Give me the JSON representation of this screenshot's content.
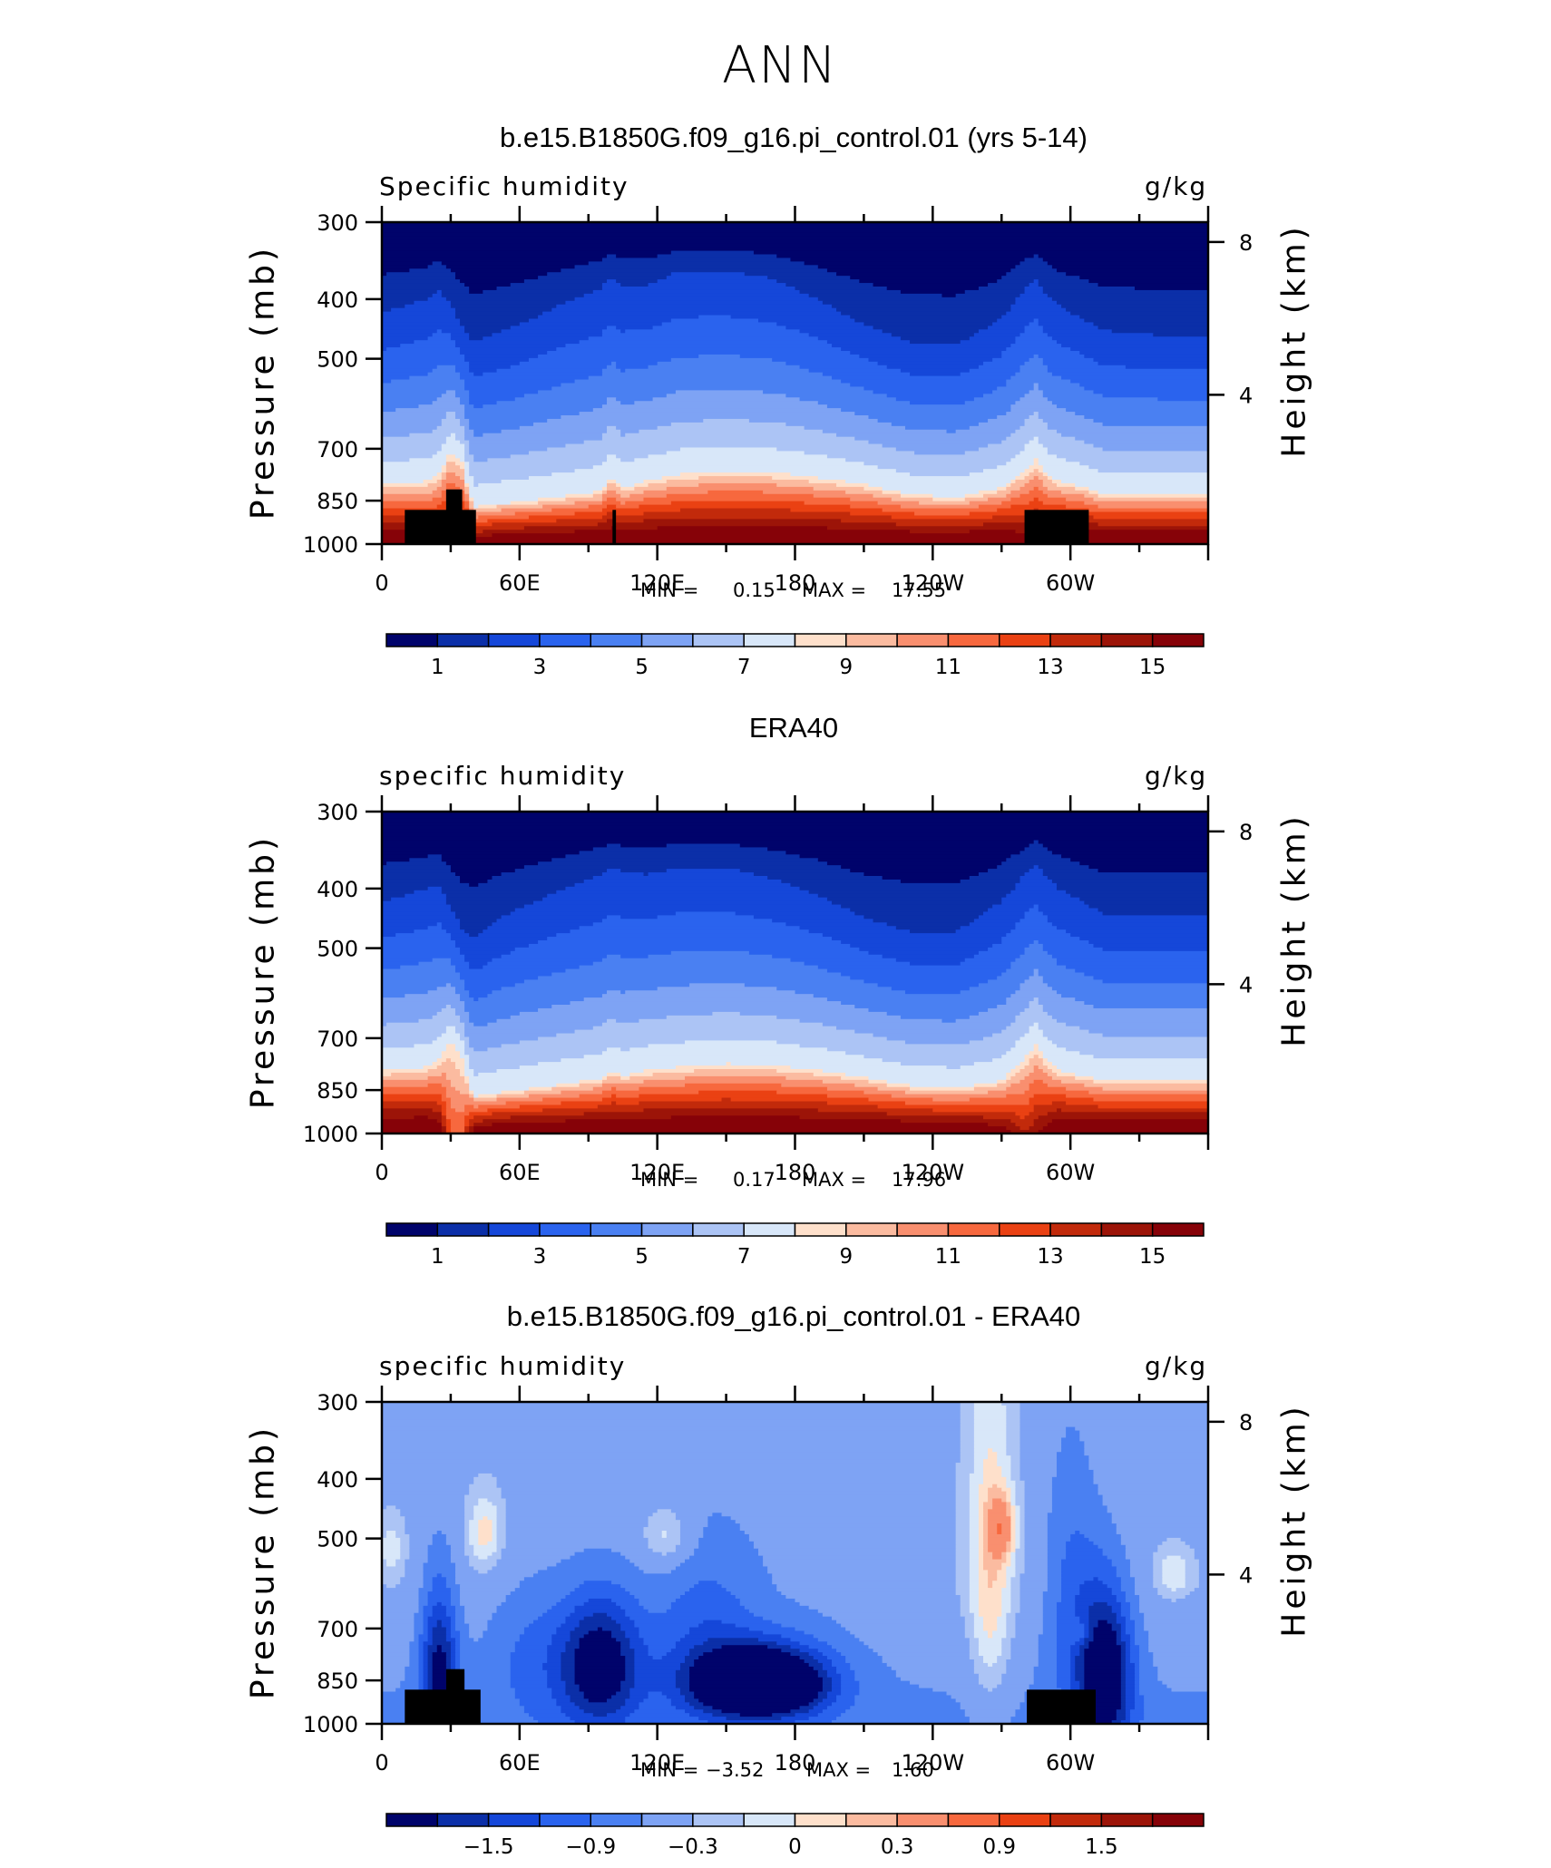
{
  "figure": {
    "title": "ANN"
  },
  "colors": {
    "sequential": [
      "#00036b",
      "#0b2fa8",
      "#1547d9",
      "#2a63ee",
      "#4a80f2",
      "#7ea3f4",
      "#acc4f5",
      "#d8e7f9",
      "#fee0cb",
      "#fbbba0",
      "#f98f6f",
      "#f7683e",
      "#ea4113",
      "#c22a0b",
      "#9c1408",
      "#860208"
    ],
    "diverging": [
      "#00036b",
      "#0b2fa8",
      "#1547d9",
      "#2a63ee",
      "#4a80f2",
      "#7ea3f4",
      "#acc4f5",
      "#d8e7f9",
      "#fee0cb",
      "#fbbba0",
      "#f98f6f",
      "#f7683e",
      "#ea4113",
      "#c22a0b",
      "#9c1408",
      "#860208"
    ],
    "topography": "#000000"
  },
  "panels": [
    {
      "title": "b.e15.B1850G.f09_g16.pi_control.01 (yrs 5-14)",
      "variable_label": "Specific humidity",
      "units": "g/kg",
      "ylabel_left": "Pressure (mb)",
      "ylabel_right": "Height (km)",
      "stats": {
        "min_label": "MIN =",
        "min_value": "0.15",
        "max_label": "MAX =",
        "max_value": "17.55"
      },
      "colorbar_labels": [
        "1",
        "3",
        "5",
        "7",
        "9",
        "11",
        "13",
        "15"
      ]
    },
    {
      "title": "ERA40",
      "variable_label": "specific humidity",
      "units": "g/kg",
      "ylabel_left": "Pressure (mb)",
      "ylabel_right": "Height (km)",
      "stats": {
        "min_label": "MIN =",
        "min_value": "0.17",
        "max_label": "MAX =",
        "max_value": "17.96"
      },
      "colorbar_labels": [
        "1",
        "3",
        "5",
        "7",
        "9",
        "11",
        "13",
        "15"
      ]
    },
    {
      "title": "b.e15.B1850G.f09_g16.pi_control.01 - ERA40",
      "variable_label": "specific humidity",
      "units": "g/kg",
      "ylabel_left": "Pressure (mb)",
      "ylabel_right": "Height (km)",
      "stats": {
        "min_label": "MIN =",
        "min_value": "−3.52",
        "max_label": "MAX =",
        "max_value": "1.60"
      },
      "colorbar_labels": [
        "−1.5",
        "−0.9",
        "−0.3",
        "0",
        "0.3",
        "0.9",
        "1.5"
      ]
    }
  ],
  "chart_data": [
    {
      "type": "heatmap",
      "title": "b.e15.B1850G.f09_g16.pi_control.01 (yrs 5-14)",
      "variable": "Specific humidity",
      "units": "g/kg",
      "xlabel": "",
      "ylabel": "Pressure (mb)",
      "ylabel_right": "Height (km)",
      "x_ticks": [
        "0",
        "60E",
        "120E",
        "180",
        "120W",
        "60W"
      ],
      "x_range_deg_east": [
        0,
        360
      ],
      "y_ticks_pressure": [
        300,
        400,
        500,
        700,
        850,
        1000
      ],
      "y_range_pressure": [
        1000,
        300
      ],
      "y_ticks_height_km": [
        4,
        8
      ],
      "levels": [
        1,
        2,
        3,
        4,
        5,
        6,
        7,
        8,
        9,
        10,
        11,
        12,
        13,
        14,
        15
      ],
      "colorbar_labels": [
        1,
        3,
        5,
        7,
        9,
        11,
        13,
        15
      ],
      "min": 0.15,
      "max": 17.55,
      "profile": {
        "lon": [
          0,
          10,
          20,
          25,
          30,
          35,
          40,
          50,
          60,
          80,
          95,
          100,
          105,
          115,
          130,
          150,
          170,
          190,
          210,
          230,
          250,
          270,
          280,
          285,
          290,
          295,
          305,
          315,
          330,
          345,
          360
        ],
        "p_q8": [
          800,
          795,
          790,
          770,
          705,
          740,
          870,
          860,
          855,
          835,
          820,
          775,
          810,
          790,
          770,
          760,
          765,
          780,
          800,
          830,
          840,
          810,
          760,
          730,
          770,
          790,
          805,
          830,
          830,
          830,
          830
        ],
        "p_q2": [
          420,
          410,
          400,
          385,
          410,
          440,
          470,
          455,
          440,
          405,
          385,
          370,
          380,
          380,
          360,
          360,
          370,
          400,
          440,
          470,
          475,
          430,
          385,
          370,
          395,
          410,
          430,
          450,
          455,
          460,
          460
        ],
        "q_surface": [
          17,
          17,
          16,
          16,
          16,
          16,
          16,
          17,
          17,
          17,
          17,
          17,
          17,
          17,
          17,
          17,
          17,
          17,
          17,
          17,
          17,
          17,
          16,
          16,
          16,
          17,
          17,
          17,
          17,
          17,
          17
        ]
      },
      "topography": [
        {
          "lon_start": 10,
          "lon_end": 41,
          "top_pressure": 880
        },
        {
          "lon_start": 28,
          "lon_end": 35,
          "top_pressure": 815
        },
        {
          "lon_start": 100.5,
          "lon_end": 102,
          "top_pressure": 880
        },
        {
          "lon_start": 280,
          "lon_end": 308,
          "top_pressure": 880
        }
      ]
    },
    {
      "type": "heatmap",
      "title": "ERA40",
      "variable": "specific humidity",
      "units": "g/kg",
      "xlabel": "",
      "ylabel": "Pressure (mb)",
      "ylabel_right": "Height (km)",
      "x_ticks": [
        "0",
        "60E",
        "120E",
        "180",
        "120W",
        "60W"
      ],
      "x_range_deg_east": [
        0,
        360
      ],
      "y_ticks_pressure": [
        300,
        400,
        500,
        700,
        850,
        1000
      ],
      "y_range_pressure": [
        1000,
        300
      ],
      "y_ticks_height_km": [
        4,
        8
      ],
      "levels": [
        1,
        2,
        3,
        4,
        5,
        6,
        7,
        8,
        9,
        10,
        11,
        12,
        13,
        14,
        15
      ],
      "colorbar_labels": [
        1,
        3,
        5,
        7,
        9,
        11,
        13,
        15
      ],
      "min": 0.17,
      "max": 17.96,
      "profile": {
        "lon": [
          0,
          10,
          20,
          25,
          30,
          35,
          40,
          50,
          60,
          80,
          95,
          100,
          105,
          115,
          130,
          150,
          170,
          190,
          210,
          230,
          250,
          270,
          280,
          285,
          290,
          295,
          305,
          315,
          330,
          345,
          360
        ],
        "p_q8": [
          790,
          785,
          780,
          760,
          710,
          760,
          870,
          860,
          850,
          830,
          815,
          790,
          805,
          790,
          780,
          770,
          775,
          790,
          810,
          835,
          845,
          820,
          755,
          720,
          765,
          790,
          805,
          820,
          820,
          820,
          820
        ],
        "p_q2": [
          420,
          410,
          400,
          395,
          430,
          465,
          480,
          450,
          430,
          400,
          380,
          370,
          375,
          380,
          370,
          370,
          385,
          410,
          445,
          470,
          470,
          420,
          380,
          365,
          385,
          400,
          420,
          440,
          440,
          440,
          440
        ],
        "q_surface": [
          17,
          17,
          17,
          16,
          12,
          12,
          16,
          17,
          17,
          17,
          17,
          17,
          17,
          17,
          17,
          17,
          17,
          17,
          17,
          17,
          17,
          16,
          14,
          15,
          16,
          17,
          17,
          17,
          17,
          17,
          17
        ]
      },
      "topography": []
    },
    {
      "type": "heatmap",
      "title": "b.e15.B1850G.f09_g16.pi_control.01 - ERA40",
      "variable": "specific humidity",
      "units": "g/kg",
      "xlabel": "",
      "ylabel": "Pressure (mb)",
      "ylabel_right": "Height (km)",
      "x_ticks": [
        "0",
        "60E",
        "120E",
        "180",
        "120W",
        "60W"
      ],
      "x_range_deg_east": [
        0,
        360
      ],
      "y_ticks_pressure": [
        300,
        400,
        500,
        700,
        850,
        1000
      ],
      "y_range_pressure": [
        1000,
        300
      ],
      "y_ticks_height_km": [
        4,
        8
      ],
      "levels": [
        -1.8,
        -1.5,
        -1.2,
        -0.9,
        -0.6,
        -0.3,
        -0.15,
        0,
        0.15,
        0.3,
        0.6,
        0.9,
        1.2,
        1.5,
        1.8
      ],
      "colorbar_labels": [
        -1.5,
        -0.9,
        -0.3,
        0,
        0.3,
        0.9,
        1.5
      ],
      "min": -3.52,
      "max": 1.6,
      "features": [
        {
          "lon": 165,
          "p": 860,
          "value": -3.2,
          "dlon": 28,
          "dp": 110
        },
        {
          "lon": 95,
          "p": 800,
          "value": -2.0,
          "dlon": 18,
          "dp": 200
        },
        {
          "lon": 25,
          "p": 820,
          "value": -1.8,
          "dlon": 8,
          "dp": 250
        },
        {
          "lon": 315,
          "p": 830,
          "value": -2.2,
          "dlon": 12,
          "dp": 250
        },
        {
          "lon": 300,
          "p": 600,
          "value": -0.9,
          "dlon": 12,
          "dp": 300
        },
        {
          "lon": 65,
          "p": 760,
          "value": -0.8,
          "dlon": 20,
          "dp": 220
        },
        {
          "lon": 140,
          "p": 700,
          "value": -1.0,
          "dlon": 25,
          "dp": 250
        },
        {
          "lon": 185,
          "p": 620,
          "value": -0.5,
          "dlon": 35,
          "dp": 230
        },
        {
          "lon": 265,
          "p": 600,
          "value": 0.5,
          "dlon": 10,
          "dp": 400
        },
        {
          "lon": 270,
          "p": 480,
          "value": 0.6,
          "dlon": 6,
          "dp": 60
        },
        {
          "lon": 125,
          "p": 500,
          "value": 0.45,
          "dlon": 12,
          "dp": 60
        },
        {
          "lon": 45,
          "p": 490,
          "value": 0.45,
          "dlon": 8,
          "dp": 70
        },
        {
          "lon": 4,
          "p": 520,
          "value": 0.3,
          "dlon": 6,
          "dp": 60
        },
        {
          "lon": 345,
          "p": 570,
          "value": 0.35,
          "dlon": 8,
          "dp": 50
        },
        {
          "lon": 305,
          "p": 710,
          "value": 0.45,
          "dlon": 5,
          "dp": 40
        }
      ],
      "topography": [
        {
          "lon_start": 10,
          "lon_end": 43,
          "top_pressure": 880
        },
        {
          "lon_start": 28,
          "lon_end": 36,
          "top_pressure": 815
        },
        {
          "lon_start": 281,
          "lon_end": 311,
          "top_pressure": 880
        }
      ]
    }
  ]
}
